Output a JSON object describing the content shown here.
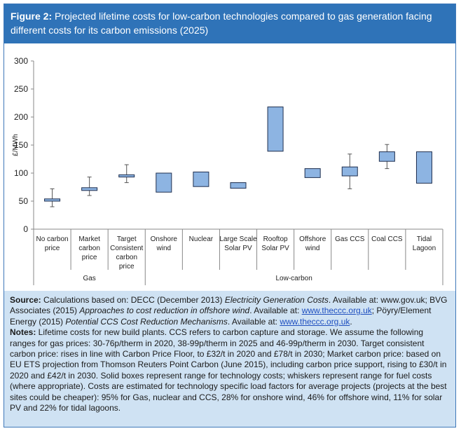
{
  "figure": {
    "label": "Figure 2:",
    "title": "Projected lifetime costs for low-carbon technologies compared to gas generation facing different costs for its carbon emissions (2025)"
  },
  "chart_data": {
    "type": "box",
    "ylabel": "£/MWh",
    "ylim": [
      0,
      300
    ],
    "yticks": [
      0,
      50,
      100,
      150,
      200,
      250,
      300
    ],
    "grid": false,
    "box_color": "#8db4e2",
    "categories": [
      {
        "label": [
          "No carbon",
          "price"
        ],
        "group": "Gas",
        "whisker_low": 40,
        "box_low": 50,
        "box_high": 54,
        "whisker_high": 72
      },
      {
        "label": [
          "Market",
          "carbon",
          "price"
        ],
        "group": "Gas",
        "whisker_low": 60,
        "box_low": 69,
        "box_high": 74,
        "whisker_high": 93
      },
      {
        "label": [
          "Target",
          "Consistent",
          "carbon",
          "price"
        ],
        "group": "Gas",
        "whisker_low": 83,
        "box_low": 93,
        "box_high": 97,
        "whisker_high": 115
      },
      {
        "label": [
          "Onshore",
          "wind"
        ],
        "group": "Low-carbon",
        "box_low": 66,
        "box_high": 100
      },
      {
        "label": [
          "Nuclear"
        ],
        "group": "Low-carbon",
        "box_low": 76,
        "box_high": 102
      },
      {
        "label": [
          "Large Scale",
          "Solar PV"
        ],
        "group": "Low-carbon",
        "box_low": 73,
        "box_high": 83
      },
      {
        "label": [
          "Rooftop",
          "Solar PV"
        ],
        "group": "Low-carbon",
        "box_low": 139,
        "box_high": 218
      },
      {
        "label": [
          "Offshore",
          "wind"
        ],
        "group": "Low-carbon",
        "box_low": 92,
        "box_high": 108
      },
      {
        "label": [
          "Gas CCS"
        ],
        "group": "Low-carbon",
        "whisker_low": 72,
        "box_low": 95,
        "box_high": 111,
        "whisker_high": 134
      },
      {
        "label": [
          "Coal CCS"
        ],
        "group": "Low-carbon",
        "whisker_low": 108,
        "box_low": 121,
        "box_high": 138,
        "whisker_high": 151
      },
      {
        "label": [
          "Tidal",
          "Lagoon"
        ],
        "group": "Low-carbon",
        "box_low": 82,
        "box_high": 138
      }
    ],
    "groups": [
      {
        "name": "Gas",
        "first": 0,
        "last": 2
      },
      {
        "name": "Low-carbon",
        "first": 3,
        "last": 10
      }
    ]
  },
  "source": {
    "source_label": "Source:",
    "s1": " Calculations based on: DECC (December 2013) ",
    "s1_italic": "Electricity Generation Costs",
    "s2": ". Available at: www.gov.uk; BVG Associates (2015) ",
    "s2_italic": "Approaches to cost reduction in offshore wind",
    "s3": ". Available at: ",
    "link1": "www.theccc.org.uk",
    "s4": "; Pöyry/Element Energy (2015) ",
    "s4_italic": "Potential CCS Cost Reduction Mechanisms",
    "s5": ". Available at: ",
    "link2": "www.theccc.org.uk",
    "s6": ".",
    "notes_label": "Notes:",
    "notes": " Lifetime costs for new build plants. CCS refers to carbon capture and storage. We assume the following ranges for gas prices: 30-76p/therm in 2020, 38-99p/therm in 2025 and 46-99p/therm in 2030. Target consistent carbon price: rises in line with Carbon Price Floor, to £32/t in 2020 and £78/t in 2030; Market carbon price: based on EU ETS projection from Thomson Reuters Point Carbon (June 2015), including carbon price support, rising to £30/t in 2020 and £42/t in 2030. Solid boxes represent range for technology costs; whiskers represent range for fuel costs (where appropriate). Costs are estimated for technology specific load factors for average projects (projects at the best sites could be cheaper): 95% for Gas, nuclear and CCS, 28% for onshore wind, 46% for offshore wind, 11% for solar PV and 22% for tidal lagoons."
  }
}
